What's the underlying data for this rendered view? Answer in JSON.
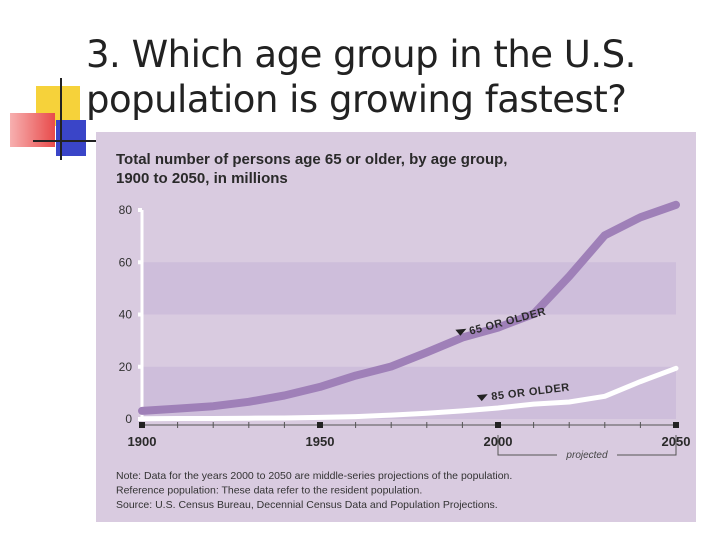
{
  "slide": {
    "title_line1": "3.  Which age group in the U.S.",
    "title_line2": "population is growing fastest?"
  },
  "colors": {
    "panel": "#d9cbe0",
    "band": "#cebedb",
    "series_65": "#9f80b8",
    "series_85": "#ffffff",
    "accent_square_yellow": "#f6d23a",
    "accent_square_red": "#e84b4b",
    "accent_square_blue": "#3a45c8"
  },
  "chart_data": {
    "type": "line",
    "title_line1": "Total number of persons age 65 or older, by age group,",
    "title_line2": "1900 to 2050, in millions",
    "xlim": [
      1900,
      2050
    ],
    "ylim": [
      0,
      80
    ],
    "yticks": [
      0,
      20,
      40,
      60,
      80
    ],
    "xtick_labels": [
      {
        "x": 1900,
        "label": "1900"
      },
      {
        "x": 1950,
        "label": "1950"
      },
      {
        "x": 2000,
        "label": "2000"
      },
      {
        "x": 2050,
        "label": "2050"
      }
    ],
    "projected_label": "projected",
    "projected_range": [
      2000,
      2050
    ],
    "series": [
      {
        "name": "65 OR OLDER",
        "label": "65 OR OLDER",
        "label_anchor": {
          "x": 1990,
          "y": 33
        },
        "x": [
          1900,
          1910,
          1920,
          1930,
          1940,
          1950,
          1960,
          1970,
          1980,
          1990,
          2000,
          2010,
          2020,
          2030,
          2040,
          2050
        ],
        "values": [
          3.1,
          4.0,
          4.9,
          6.6,
          9.0,
          12.3,
          16.6,
          20.1,
          25.5,
          31.2,
          35.0,
          40.2,
          54.6,
          70.3,
          77.2,
          82.0
        ]
      },
      {
        "name": "85 OR OLDER",
        "label": "85 OR OLDER",
        "label_anchor": {
          "x": 1996,
          "y": 8
        },
        "x": [
          1900,
          1910,
          1920,
          1930,
          1940,
          1950,
          1960,
          1970,
          1980,
          1990,
          2000,
          2010,
          2020,
          2030,
          2040,
          2050
        ],
        "values": [
          0.1,
          0.2,
          0.2,
          0.3,
          0.4,
          0.6,
          0.9,
          1.5,
          2.2,
          3.1,
          4.2,
          5.7,
          6.5,
          8.7,
          14.3,
          19.4
        ]
      }
    ],
    "notes": [
      "Note: Data for the years 2000 to 2050 are middle-series projections of the population.",
      "Reference population: These data refer to the resident population.",
      "Source: U.S. Census Bureau, Decennial Census Data and Population Projections."
    ]
  }
}
